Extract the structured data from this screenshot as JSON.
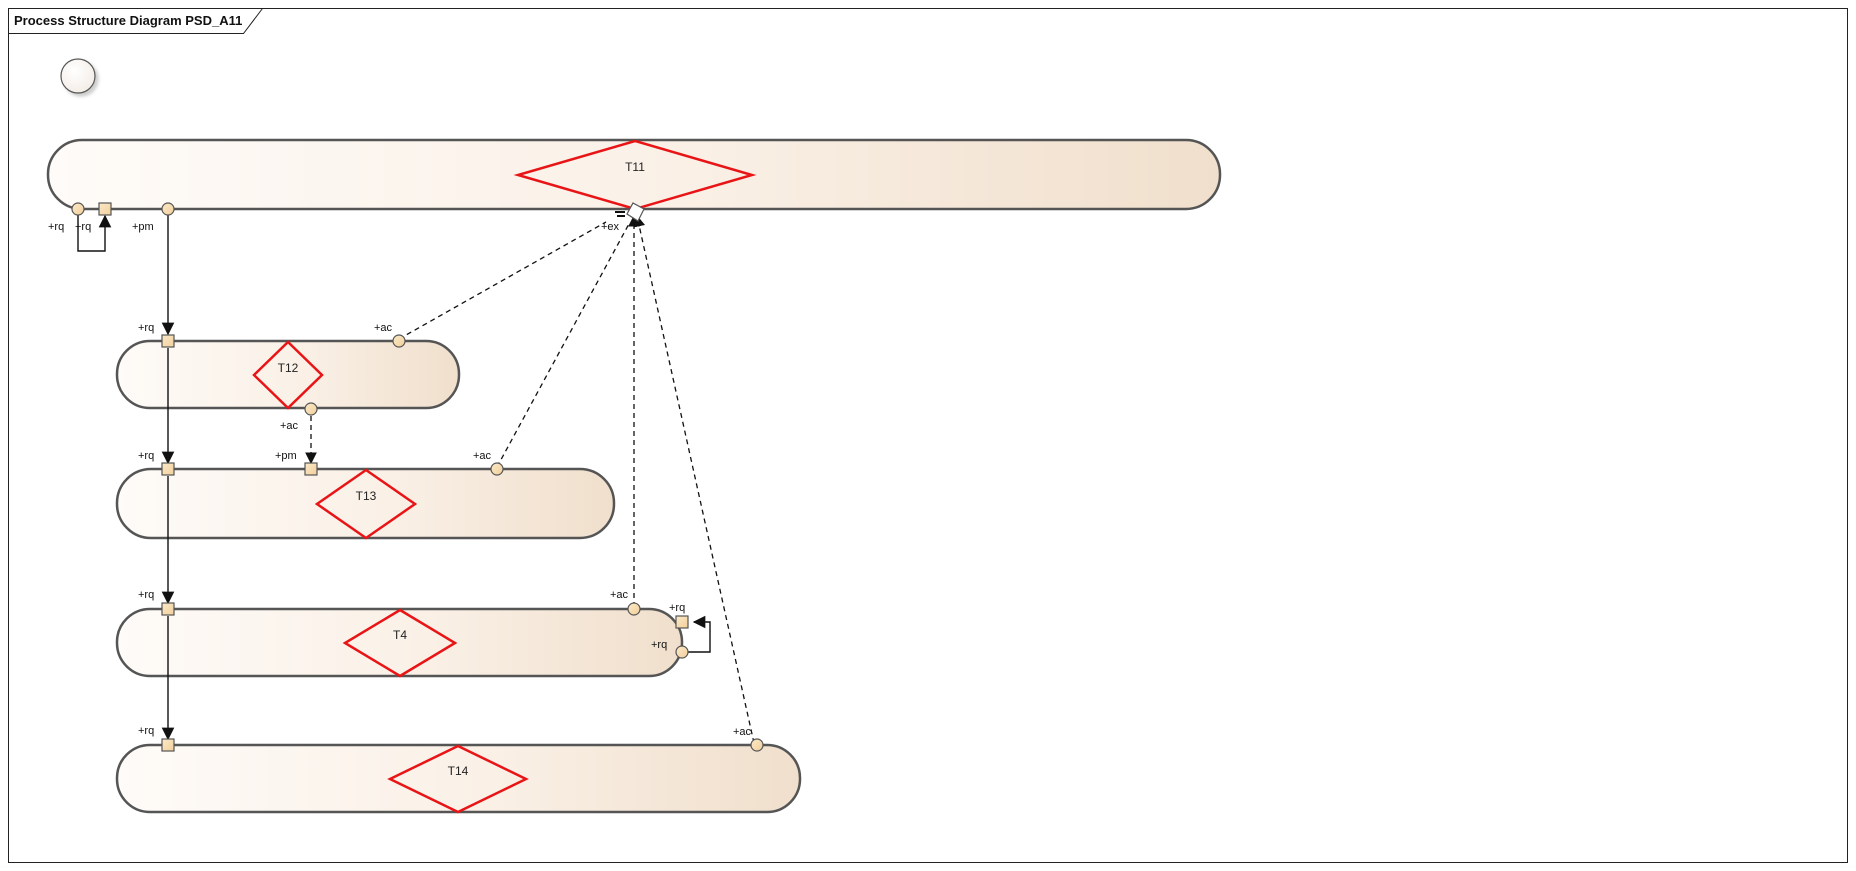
{
  "diagram": {
    "title": "Process Structure Diagram PSD_A11",
    "colors": {
      "frame": "#222222",
      "pool_stroke": "#555555",
      "pool_fill_light": "#fefaf6",
      "pool_fill_dark": "#f0dfcc",
      "diamond": "#e81416",
      "port_fill": "#f7dfb7",
      "port_stroke": "#555555",
      "line": "#111111"
    },
    "tasks": {
      "t11": "T11",
      "t12": "T12",
      "t13": "T13",
      "t4": "T4",
      "t14": "T14"
    },
    "ports": {
      "t11_rq_a": "+rq",
      "t11_rq_b": "+rq",
      "t11_pm": "+pm",
      "t11_ex": "+ex",
      "t12_rq": "+rq",
      "t12_ac_top": "+ac",
      "t12_ac_bottom": "+ac",
      "t13_rq": "+rq",
      "t13_pm": "+pm",
      "t13_ac": "+ac",
      "t4_rq": "+rq",
      "t4_ac": "+ac",
      "t4_rq_right": "+rq",
      "t4_rq_right2": "+rq",
      "t14_rq": "+rq",
      "t14_ac": "+ac"
    }
  }
}
